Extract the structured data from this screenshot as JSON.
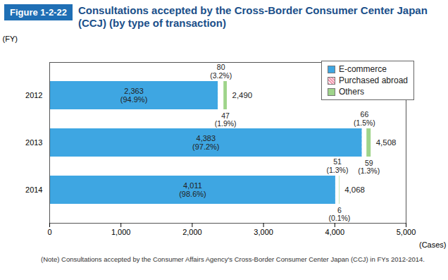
{
  "chart_data": {
    "type": "bar",
    "orientation": "horizontal",
    "stacked": true,
    "data_labels": true,
    "grid": false,
    "legend": "top-right",
    "figure_label": "Figure 1-2-22",
    "title": "Consultations accepted by the Cross-Border Consumer Center Japan (CCJ) (by type of transaction)",
    "note": "(Note) Consultations accepted by the Consumer Affairs Agency's Cross-Border Consumer Center Japan (CCJ) in FYs 2012-2014.",
    "x_label": "(Cases)",
    "y_label": "(FY)",
    "categories": [
      "2012",
      "2013",
      "2014"
    ],
    "series": [
      {
        "name": "E-commerce",
        "color": "#3ea6e2",
        "values": [
          2363,
          4383,
          4011
        ],
        "value_labels": [
          "2,363\n(94.9%)",
          "4,383\n(97.2%)",
          "4,011\n(98.6%)"
        ]
      },
      {
        "name": "Purchased abroad",
        "color": "#f29bb0",
        "values": [
          80,
          66,
          51
        ],
        "value_labels": [
          "80\n(3.2%)",
          "66\n(1.5%)",
          "51\n(1.3%)"
        ]
      },
      {
        "name": "Others",
        "color": "#9fd48a",
        "values": [
          47,
          59,
          6
        ],
        "value_labels": [
          "47\n(1.9%)",
          "59\n(1.3%)",
          "6\n(0.1%)"
        ]
      }
    ],
    "totals": [
      2490,
      4508,
      4068
    ],
    "total_labels": [
      "2,490",
      "4,508",
      "4,068"
    ],
    "xlim": [
      0,
      5000
    ],
    "xticks": [
      0,
      {
        "value": 1000,
        "label": "1,000"
      },
      {
        "value": 2000,
        "label": "2,000"
      },
      {
        "value": 3000,
        "label": "3,000"
      },
      {
        "value": 4000,
        "label": "4,000"
      },
      {
        "value": 5000,
        "label": "5,000"
      }
    ]
  }
}
